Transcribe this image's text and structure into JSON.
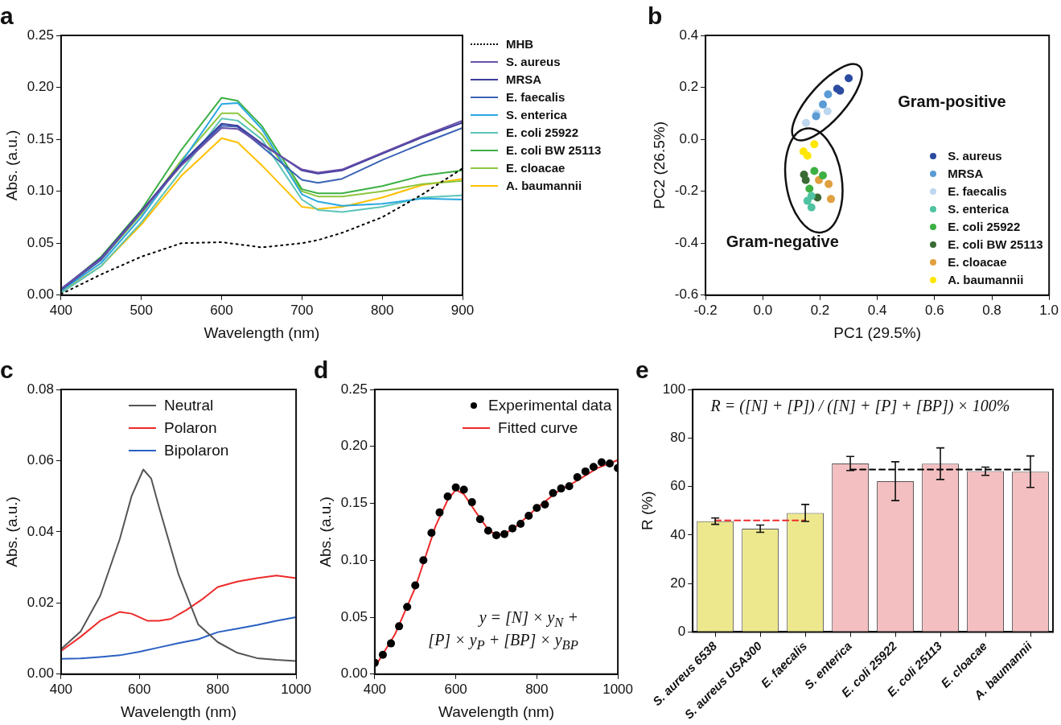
{
  "chart_data": [
    {
      "type": "line",
      "title": "a",
      "xlabel": "Wavelength (nm)",
      "ylabel": "Abs. (a.u.)",
      "x": [
        400,
        450,
        500,
        550,
        600,
        620,
        650,
        700,
        720,
        750,
        800,
        850,
        900
      ],
      "xlim": [
        400,
        900
      ],
      "xticks": [
        400,
        500,
        600,
        700,
        800,
        900
      ],
      "ylim": [
        0,
        0.25
      ],
      "yticks": [
        {
          "value": 0,
          "label": "0.00"
        },
        {
          "value": 0.05,
          "label": "0.05"
        },
        {
          "value": 0.1,
          "label": "0.10"
        },
        {
          "value": 0.15,
          "label": "0.15"
        },
        {
          "value": 0.2,
          "label": "0.20"
        },
        {
          "value": 0.25,
          "label": "0.25"
        }
      ],
      "legend": "right",
      "series": [
        {
          "name": "MHB",
          "color": "#000000",
          "line_style": "dotted",
          "values": [
            0.001,
            0.02,
            0.037,
            0.05,
            0.051,
            0.049,
            0.046,
            0.05,
            0.053,
            0.06,
            0.075,
            0.097,
            0.122
          ]
        },
        {
          "name": "S. aureus",
          "color": "#6a4fa8",
          "values": [
            0.006,
            0.035,
            0.08,
            0.125,
            0.161,
            0.16,
            0.145,
            0.121,
            0.118,
            0.121,
            0.137,
            0.153,
            0.168
          ]
        },
        {
          "name": "MRSA",
          "color": "#3b3b9e",
          "values": [
            0.006,
            0.036,
            0.081,
            0.127,
            0.165,
            0.163,
            0.146,
            0.12,
            0.117,
            0.12,
            0.136,
            0.152,
            0.166
          ]
        },
        {
          "name": "E. faecalis",
          "color": "#3a62b5",
          "values": [
            0.005,
            0.034,
            0.08,
            0.126,
            0.163,
            0.162,
            0.143,
            0.111,
            0.108,
            0.112,
            0.13,
            0.146,
            0.161
          ]
        },
        {
          "name": "S. enterica",
          "color": "#29a8e0",
          "values": [
            0.004,
            0.031,
            0.075,
            0.128,
            0.184,
            0.185,
            0.16,
            0.097,
            0.09,
            0.086,
            0.088,
            0.093,
            0.092
          ]
        },
        {
          "name": "E. coli  25922",
          "color": "#5bc4b8",
          "values": [
            0.002,
            0.028,
            0.07,
            0.12,
            0.17,
            0.168,
            0.15,
            0.092,
            0.082,
            0.08,
            0.085,
            0.094,
            0.096
          ]
        },
        {
          "name": "E. coli  BW 25113",
          "color": "#3cb043",
          "values": [
            0.005,
            0.037,
            0.082,
            0.14,
            0.19,
            0.187,
            0.163,
            0.102,
            0.098,
            0.098,
            0.105,
            0.115,
            0.12
          ]
        },
        {
          "name": "E. cloacae",
          "color": "#8dc63f",
          "values": [
            0.005,
            0.034,
            0.078,
            0.13,
            0.175,
            0.175,
            0.155,
            0.1,
            0.095,
            0.095,
            0.1,
            0.107,
            0.11
          ]
        },
        {
          "name": "A. baumannii",
          "color": "#ffc000",
          "values": [
            0.003,
            0.028,
            0.068,
            0.115,
            0.151,
            0.147,
            0.125,
            0.085,
            0.083,
            0.085,
            0.094,
            0.106,
            0.112
          ]
        }
      ]
    },
    {
      "type": "scatter",
      "title": "b",
      "xlabel": "PC1 (29.5%)",
      "ylabel": "PC2 (26.5%)",
      "xlim": [
        -0.2,
        1.0
      ],
      "xticks": [
        -0.2,
        {
          "value": 0,
          "label": "0.0"
        },
        0.2,
        0.4,
        0.6,
        0.8,
        {
          "value": 1,
          "label": "1.0"
        }
      ],
      "ylim": [
        -0.6,
        0.4
      ],
      "yticks": [
        -0.6,
        -0.4,
        -0.2,
        {
          "value": 0,
          "label": "0.0"
        },
        0.2,
        0.4
      ],
      "legend": "bottom right",
      "marker": "circle",
      "annotations": [
        "Gram-positive",
        "Gram-negative"
      ],
      "series": [
        {
          "name": "S. aureus",
          "color": "#2b4ba0",
          "x": [
            0.3,
            0.26,
            0.27
          ],
          "values": [
            0.235,
            0.195,
            0.187
          ]
        },
        {
          "name": "MRSA",
          "color": "#5b9bd5",
          "x": [
            0.228,
            0.21,
            0.186
          ],
          "values": [
            0.173,
            0.134,
            0.089
          ]
        },
        {
          "name": "E. faecalis",
          "color": "#bdd7ee",
          "x": [
            0.151,
            0.188,
            0.226
          ],
          "values": [
            0.063,
            0.099,
            0.108
          ]
        },
        {
          "name": "S. enterica",
          "color": "#4fc3a1",
          "x": [
            0.17,
            0.156,
            0.17
          ],
          "values": [
            -0.218,
            -0.237,
            -0.262
          ]
        },
        {
          "name": "E. coli  25922",
          "color": "#3cb043",
          "x": [
            0.18,
            0.21,
            0.163
          ],
          "values": [
            -0.122,
            -0.139,
            -0.19
          ]
        },
        {
          "name": "E. coli  BW 25113",
          "color": "#3a6b35",
          "x": [
            0.144,
            0.15,
            0.191
          ],
          "values": [
            -0.136,
            -0.157,
            -0.224
          ]
        },
        {
          "name": "E. cloacae",
          "color": "#e0a040",
          "x": [
            0.196,
            0.23,
            0.238
          ],
          "values": [
            -0.157,
            -0.172,
            -0.23
          ]
        },
        {
          "name": "A. baumannii",
          "color": "#ffe600",
          "x": [
            0.18,
            0.142,
            0.156
          ],
          "values": [
            -0.019,
            -0.047,
            -0.063
          ]
        }
      ]
    },
    {
      "type": "line",
      "title": "c",
      "xlabel": "Wavelength (nm)",
      "ylabel": "Abs. (a.u.)",
      "xlim": [
        400,
        1000
      ],
      "xticks": [
        400,
        600,
        800,
        1000
      ],
      "ylim": [
        0,
        0.08
      ],
      "yticks": [
        {
          "value": 0,
          "label": "0.00"
        },
        {
          "value": 0.02,
          "label": "0.02"
        },
        {
          "value": 0.04,
          "label": "0.04"
        },
        {
          "value": 0.06,
          "label": "0.06"
        },
        {
          "value": 0.08,
          "label": "0.08"
        }
      ],
      "legend": "top",
      "series": [
        {
          "name": "Neutral",
          "color": "#555555",
          "x": [
            400,
            450,
            500,
            550,
            580,
            610,
            630,
            650,
            700,
            750,
            800,
            850,
            900,
            950,
            1000
          ],
          "values": [
            0.007,
            0.012,
            0.022,
            0.038,
            0.05,
            0.0575,
            0.055,
            0.047,
            0.028,
            0.014,
            0.009,
            0.006,
            0.0045,
            0.004,
            0.0037
          ]
        },
        {
          "name": "Polaron",
          "color": "#ee2b2b",
          "x": [
            400,
            450,
            500,
            550,
            580,
            620,
            650,
            680,
            720,
            760,
            800,
            850,
            900,
            950,
            1000
          ],
          "values": [
            0.0065,
            0.0105,
            0.015,
            0.0175,
            0.017,
            0.015,
            0.015,
            0.0155,
            0.018,
            0.021,
            0.0245,
            0.026,
            0.027,
            0.0277,
            0.027
          ]
        },
        {
          "name": "Bipolaron",
          "color": "#2a5fc2",
          "x": [
            400,
            450,
            500,
            550,
            600,
            650,
            700,
            750,
            800,
            850,
            900,
            950,
            1000
          ],
          "values": [
            0.0043,
            0.0044,
            0.0048,
            0.0053,
            0.0063,
            0.0075,
            0.0087,
            0.0098,
            0.0118,
            0.0128,
            0.0138,
            0.015,
            0.016
          ]
        }
      ]
    },
    {
      "type": "scatter",
      "title": "d",
      "xlabel": "Wavelength (nm)",
      "ylabel": "Abs. (a.u.)",
      "xlim": [
        400,
        1000
      ],
      "xticks": [
        400,
        600,
        800,
        1000
      ],
      "ylim": [
        0,
        0.25
      ],
      "yticks": [
        {
          "value": 0,
          "label": "0.00"
        },
        {
          "value": 0.05,
          "label": "0.05"
        },
        {
          "value": 0.1,
          "label": "0.10"
        },
        {
          "value": 0.15,
          "label": "0.15"
        },
        {
          "value": 0.2,
          "label": "0.20"
        },
        {
          "value": 0.25,
          "label": "0.25"
        }
      ],
      "legend": "top right",
      "annotations": [
        "y = [N] × y$_{N}$ +\n[P] × y$_{P}$ + [BP] × y$_{BP}$"
      ],
      "series": [
        {
          "name": "Experimental data",
          "type": "scatter",
          "marker": "circle",
          "color": "#000000",
          "x": [
            400,
            420,
            440,
            460,
            480,
            500,
            520,
            540,
            560,
            580,
            600,
            620,
            640,
            660,
            680,
            700,
            720,
            740,
            760,
            780,
            800,
            820,
            840,
            860,
            880,
            900,
            920,
            940,
            960,
            980,
            1000
          ],
          "values": [
            0.01,
            0.017,
            0.027,
            0.042,
            0.059,
            0.078,
            0.1,
            0.124,
            0.142,
            0.156,
            0.164,
            0.162,
            0.151,
            0.136,
            0.126,
            0.122,
            0.123,
            0.128,
            0.132,
            0.139,
            0.146,
            0.149,
            0.159,
            0.163,
            0.165,
            0.173,
            0.178,
            0.182,
            0.186,
            0.185,
            0.181
          ]
        },
        {
          "name": "Fitted curve",
          "type": "line",
          "color": "#ee2b2b",
          "x": [
            400,
            450,
            500,
            550,
            580,
            600,
            620,
            650,
            680,
            700,
            720,
            750,
            800,
            850,
            900,
            950,
            1000
          ],
          "values": [
            0.006,
            0.035,
            0.076,
            0.13,
            0.153,
            0.162,
            0.158,
            0.142,
            0.127,
            0.122,
            0.123,
            0.13,
            0.146,
            0.16,
            0.17,
            0.181,
            0.188
          ]
        }
      ]
    },
    {
      "type": "bar",
      "title": "e",
      "ylabel": "R (%)",
      "categories": [
        "S. aureus 6538",
        "S. aureus USA300",
        "E. faecalis",
        "S. enterica",
        "E. coli 25922",
        "E. coli 25113",
        "E. cloacae",
        "A. baumannii"
      ],
      "ylim": [
        0,
        100
      ],
      "yticks": [
        0,
        20,
        40,
        60,
        80,
        100
      ],
      "legend": false,
      "annotations": [
        "R = ([N] + [P]) / ([N] + [P] + [BP]) × 100%"
      ],
      "series": [
        {
          "values": [
            45.7,
            42.6,
            49.1,
            69.5,
            62.2,
            69.4,
            66.3,
            66.1
          ],
          "colors": [
            "#ede88e",
            "#ede88e",
            "#ede88e",
            "#f4bfc1",
            "#f4bfc1",
            "#f4bfc1",
            "#f4bfc1",
            "#f4bfc1"
          ],
          "errors": [
            1.3,
            1.5,
            3.5,
            2.9,
            8,
            6.5,
            1.7,
            6.5
          ]
        },
        {
          "type": "line",
          "color": "#ee2b2b",
          "line_style": "dashed",
          "values": [
            46,
            46,
            46,
            null,
            null,
            null,
            null,
            null
          ]
        },
        {
          "type": "line",
          "color": "#000000",
          "line_style": "dashed",
          "values": [
            null,
            null,
            null,
            67,
            67,
            67,
            67,
            67
          ]
        }
      ]
    }
  ]
}
